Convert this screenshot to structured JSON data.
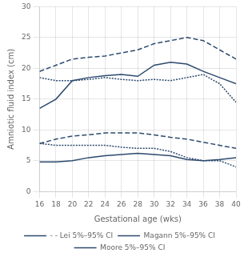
{
  "chart_data": {
    "type": "line",
    "xlabel": "Gestational age (wks)",
    "ylabel": "Amniotic fluid index (cm)",
    "x": [
      16,
      18,
      20,
      22,
      24,
      26,
      28,
      30,
      32,
      34,
      36,
      38,
      40
    ],
    "series": [
      {
        "name": "- - Lei 5%–95% CI",
        "color": "#2c4a6e",
        "line_style": "dashed",
        "values": [
          19.5,
          20.5,
          21.5,
          21.8,
          22.0,
          22.5,
          23.0,
          24.0,
          24.5,
          25.0,
          24.5,
          23.0,
          21.5
        ]
      },
      {
        "name": "- - Lei 5%–95% CI",
        "color": "#2c4a6e",
        "line_style": "dashed",
        "values": [
          7.8,
          8.5,
          9.0,
          9.2,
          9.5,
          9.5,
          9.5,
          9.2,
          8.8,
          8.5,
          8.0,
          7.5,
          7.0
        ]
      },
      {
        "name": "Magann 5%–95% CI",
        "color": "#2c4a6e",
        "line_style": "solid",
        "values": [
          13.5,
          15.0,
          18.0,
          18.5,
          18.8,
          19.0,
          18.7,
          20.5,
          21.0,
          20.7,
          19.5,
          18.5,
          17.5
        ]
      },
      {
        "name": "Magann 5%–95% CI",
        "color": "#2c4a6e",
        "line_style": "solid",
        "values": [
          4.8,
          4.8,
          5.0,
          5.5,
          5.8,
          6.0,
          6.2,
          6.0,
          5.8,
          5.2,
          5.0,
          5.2,
          5.5
        ]
      },
      {
        "name": "Moore 5%–95% CI",
        "color": "#2c4a6e",
        "line_style": "dotted",
        "values": [
          18.5,
          18.0,
          18.0,
          18.2,
          18.5,
          18.2,
          18.0,
          18.2,
          18.0,
          18.5,
          19.0,
          17.5,
          14.5
        ]
      },
      {
        "name": "Moore 5%–95% CI",
        "color": "#2c4a6e",
        "line_style": "dotted",
        "values": [
          7.8,
          7.5,
          7.5,
          7.5,
          7.5,
          7.2,
          7.0,
          7.0,
          6.5,
          5.5,
          5.0,
          5.0,
          4.0
        ]
      }
    ],
    "xlim": [
      16,
      40
    ],
    "xticks": [
      16,
      18,
      20,
      22,
      24,
      26,
      28,
      30,
      32,
      34,
      36,
      38,
      40
    ],
    "ylim": [
      0,
      30
    ],
    "yticks": [
      0,
      5,
      10,
      15,
      20,
      25,
      30
    ],
    "grid": true,
    "legend": "bottom"
  }
}
